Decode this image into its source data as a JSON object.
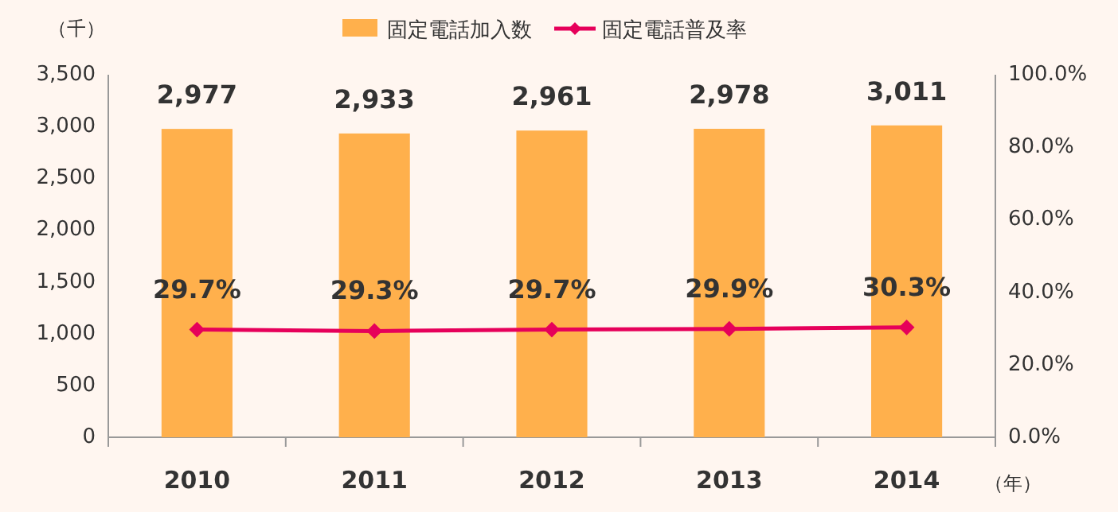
{
  "chart_data": {
    "type": "bar",
    "ylabel": "（千）",
    "xlabel": "（年）",
    "categories": [
      "2010",
      "2011",
      "2012",
      "2013",
      "2014"
    ],
    "series": [
      {
        "name": "固定電話加入数",
        "color": "#ffb04c",
        "values": [
          2977,
          2933,
          2961,
          2978,
          3011
        ],
        "value_labels": [
          "2,977",
          "2,933",
          "2,961",
          "2,978",
          "3,011"
        ]
      },
      {
        "name": "固定電話普及率",
        "type": "line",
        "axis": "y2",
        "color": "#e6005a",
        "marker": "diamond",
        "values": [
          29.7,
          29.3,
          29.7,
          29.9,
          30.3
        ],
        "value_labels": [
          "29.7%",
          "29.3%",
          "29.7%",
          "29.9%",
          "30.3%"
        ]
      }
    ],
    "ylim": [
      0,
      3500
    ],
    "yticks": [
      0,
      500,
      {
        "value": 1000,
        "label": "1,000"
      },
      {
        "value": 1500,
        "label": "1,500"
      },
      {
        "value": 2000,
        "label": "2,000"
      },
      {
        "value": 2500,
        "label": "2,500"
      },
      {
        "value": 3000,
        "label": "3,000"
      },
      {
        "value": 3500,
        "label": "3,500"
      }
    ],
    "y2lim": [
      0,
      100
    ],
    "y2ticks": [
      {
        "value": 0,
        "label": "0.0%"
      },
      {
        "value": 20,
        "label": "20.0%"
      },
      {
        "value": 40,
        "label": "40.0%"
      },
      {
        "value": 60,
        "label": "60.0%"
      },
      {
        "value": 80,
        "label": "80.0%"
      },
      {
        "value": 100,
        "label": "100.0%"
      }
    ],
    "grid": false,
    "legend": "top"
  }
}
